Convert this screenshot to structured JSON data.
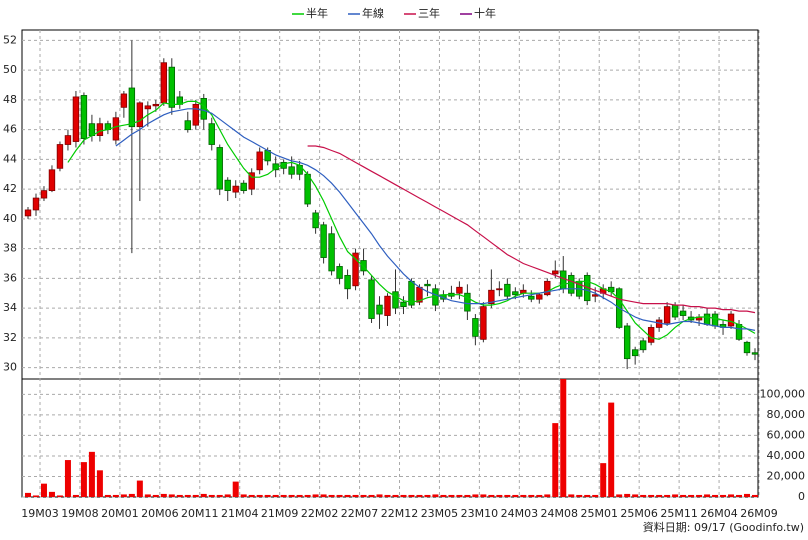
{
  "chart_data": [
    {
      "type": "candlestick",
      "up_color": "#e00000",
      "down_color": "#00c000",
      "ylim": [
        29.3,
        52.7
      ],
      "yticks": [
        30,
        32,
        34,
        36,
        38,
        40,
        42,
        44,
        46,
        48,
        50,
        52
      ],
      "grid": true,
      "open": [
        40.2,
        40.6,
        41.4,
        41.9,
        43.4,
        45.0,
        45.2,
        48.3,
        46.4,
        45.6,
        46.4,
        45.3,
        47.5,
        48.8,
        46.2,
        47.4,
        47.6,
        47.8,
        50.2,
        48.2,
        46.6,
        46.3,
        48.1,
        46.4,
        44.8,
        42.6,
        41.8,
        42.4,
        42.0,
        43.3,
        44.6,
        43.7,
        43.8,
        43.5,
        43.6,
        43.0,
        40.4,
        39.6,
        39.0,
        36.8,
        36.2,
        35.5,
        37.2,
        35.9,
        34.2,
        33.5,
        35.1,
        34.4,
        35.8,
        34.4,
        35.6,
        35.3,
        34.9,
        35.0,
        35.0,
        35.0,
        33.3,
        31.9,
        34.3,
        35.3,
        35.6,
        35.1,
        35.0,
        34.8,
        34.6,
        34.9,
        36.3,
        36.5,
        36.2,
        35.8,
        36.2,
        34.8,
        35.0,
        35.4,
        35.3,
        32.8,
        31.2,
        31.8,
        31.7,
        32.7,
        33.0,
        34.2,
        33.8,
        33.4,
        33.2,
        33.6,
        33.6,
        32.9,
        32.8,
        32.9,
        31.7,
        31.0
      ],
      "high": [
        40.8,
        41.7,
        42.2,
        43.6,
        45.2,
        46.0,
        48.6,
        48.5,
        47.0,
        46.8,
        46.6,
        47.2,
        48.6,
        52.0,
        47.9,
        47.9,
        48.0,
        50.8,
        50.8,
        48.6,
        47.2,
        48.0,
        48.4,
        46.8,
        45.0,
        42.8,
        42.6,
        42.6,
        43.4,
        44.8,
        44.8,
        44.2,
        44.0,
        44.2,
        43.9,
        43.2,
        40.6,
        39.8,
        39.5,
        37.0,
        36.6,
        38.0,
        38.0,
        36.2,
        34.8,
        35.0,
        36.6,
        34.8,
        36.0,
        35.6,
        35.9,
        35.6,
        35.2,
        35.5,
        35.8,
        35.6,
        33.6,
        34.4,
        36.6,
        35.8,
        36.0,
        35.4,
        35.6,
        35.2,
        35.0,
        36.0,
        37.2,
        37.5,
        36.4,
        36.0,
        36.4,
        35.4,
        35.6,
        35.8,
        35.4,
        33.0,
        31.4,
        32.0,
        32.9,
        33.4,
        34.4,
        34.4,
        34.2,
        33.8,
        33.6,
        34.0,
        33.8,
        33.2,
        33.8,
        33.2,
        31.8,
        31.3
      ],
      "low": [
        40.0,
        40.2,
        41.2,
        41.8,
        43.2,
        44.6,
        44.8,
        45.0,
        45.2,
        45.2,
        45.7,
        45.0,
        46.8,
        37.7,
        41.2,
        46.2,
        47.2,
        47.6,
        47.0,
        47.4,
        45.8,
        46.0,
        46.0,
        44.6,
        41.6,
        41.2,
        41.4,
        41.7,
        41.6,
        43.0,
        43.6,
        42.8,
        43.0,
        42.7,
        42.6,
        40.8,
        39.0,
        37.0,
        36.2,
        35.6,
        34.6,
        35.2,
        36.2,
        33.0,
        32.6,
        32.8,
        33.6,
        33.6,
        34.0,
        34.2,
        34.8,
        33.8,
        34.4,
        34.6,
        34.6,
        33.2,
        31.5,
        31.7,
        34.0,
        34.8,
        34.6,
        34.6,
        34.7,
        34.4,
        34.3,
        34.8,
        36.0,
        35.0,
        34.8,
        34.6,
        34.2,
        34.4,
        34.6,
        34.8,
        32.6,
        29.9,
        30.2,
        31.0,
        31.5,
        32.4,
        32.8,
        33.2,
        33.2,
        33.0,
        32.8,
        32.8,
        32.6,
        32.2,
        32.6,
        31.8,
        30.8,
        30.5
      ],
      "close": [
        40.6,
        41.4,
        41.9,
        43.3,
        45.0,
        45.6,
        48.2,
        45.4,
        45.6,
        46.4,
        46.0,
        46.8,
        48.4,
        46.2,
        47.8,
        47.6,
        47.7,
        50.5,
        47.5,
        47.7,
        46.0,
        47.7,
        46.7,
        45.0,
        42.0,
        41.9,
        42.2,
        41.9,
        43.1,
        44.5,
        43.9,
        43.3,
        43.4,
        43.0,
        43.0,
        41.0,
        39.4,
        37.4,
        36.5,
        36.0,
        35.3,
        37.7,
        36.5,
        33.3,
        33.6,
        34.8,
        34.0,
        34.1,
        34.2,
        35.4,
        35.5,
        34.2,
        34.6,
        34.8,
        35.4,
        33.8,
        32.1,
        34.1,
        35.2,
        35.3,
        34.8,
        34.9,
        35.2,
        34.6,
        34.9,
        35.8,
        36.5,
        35.3,
        35.0,
        34.8,
        34.5,
        34.9,
        35.3,
        35.1,
        32.7,
        30.6,
        30.8,
        31.2,
        32.7,
        33.2,
        34.1,
        33.4,
        33.5,
        33.2,
        33.4,
        32.9,
        32.8,
        32.7,
        33.6,
        31.9,
        31.0,
        30.9
      ],
      "series": [
        {
          "name": "半年",
          "color": "#00cc00",
          "values": [
            null,
            null,
            null,
            null,
            null,
            43.8,
            44.6,
            45.3,
            45.6,
            45.9,
            46.0,
            46.2,
            46.3,
            46.4,
            46.6,
            47.0,
            47.3,
            47.8,
            47.7,
            47.7,
            47.9,
            47.9,
            47.6,
            47.0,
            46.0,
            45.0,
            44.2,
            43.4,
            42.8,
            42.8,
            43.0,
            43.4,
            43.7,
            43.8,
            43.6,
            43.0,
            42.2,
            41.2,
            40.0,
            38.8,
            37.8,
            37.3,
            36.8,
            36.2,
            35.6,
            35.1,
            34.8,
            34.5,
            34.4,
            34.5,
            34.7,
            34.8,
            34.9,
            34.9,
            34.9,
            34.7,
            34.4,
            34.2,
            34.2,
            34.3,
            34.5,
            34.8,
            35.0,
            35.0,
            35.0,
            35.1,
            35.4,
            35.6,
            35.7,
            35.8,
            35.8,
            35.6,
            35.3,
            35.1,
            34.6,
            33.8,
            33.0,
            32.5,
            32.0,
            31.9,
            32.2,
            32.7,
            33.1,
            33.3,
            33.4,
            33.4,
            33.3,
            33.2,
            33.1,
            32.9,
            32.6,
            32.3
          ]
        },
        {
          "name": "年線",
          "color": "#2f5fc0",
          "values": [
            null,
            null,
            null,
            null,
            null,
            null,
            null,
            null,
            null,
            null,
            null,
            44.9,
            45.3,
            45.7,
            46.0,
            46.4,
            46.7,
            47.0,
            47.2,
            47.3,
            47.4,
            47.4,
            47.3,
            47.1,
            46.7,
            46.3,
            45.9,
            45.5,
            45.2,
            44.9,
            44.6,
            44.3,
            44.1,
            43.9,
            43.8,
            43.6,
            43.3,
            42.9,
            42.4,
            41.8,
            41.1,
            40.4,
            39.7,
            39.0,
            38.2,
            37.5,
            36.9,
            36.3,
            35.8,
            35.4,
            35.1,
            34.9,
            34.7,
            34.5,
            34.4,
            34.3,
            34.3,
            34.3,
            34.4,
            34.5,
            34.6,
            34.7,
            34.8,
            34.9,
            35.0,
            35.1,
            35.2,
            35.3,
            35.3,
            35.3,
            35.2,
            35.0,
            34.7,
            34.4,
            34.0,
            33.7,
            33.4,
            33.2,
            33.1,
            33.0,
            32.9,
            33.0,
            33.1,
            33.1,
            33.0,
            32.9,
            32.8,
            32.7,
            32.7,
            32.6,
            32.6,
            32.5
          ]
        },
        {
          "name": "三年",
          "color": "#c8104a",
          "values": [
            null,
            null,
            null,
            null,
            null,
            null,
            null,
            null,
            null,
            null,
            null,
            null,
            null,
            null,
            null,
            null,
            null,
            null,
            null,
            null,
            null,
            null,
            null,
            null,
            null,
            null,
            null,
            null,
            null,
            null,
            null,
            null,
            null,
            null,
            null,
            44.9,
            44.9,
            44.8,
            44.6,
            44.4,
            44.1,
            43.8,
            43.5,
            43.2,
            42.9,
            42.6,
            42.3,
            42.0,
            41.7,
            41.4,
            41.1,
            40.8,
            40.5,
            40.2,
            39.9,
            39.6,
            39.2,
            38.8,
            38.4,
            38.0,
            37.6,
            37.3,
            37.0,
            36.8,
            36.6,
            36.4,
            36.2,
            36.0,
            35.8,
            35.6,
            35.4,
            35.2,
            35.0,
            34.8,
            34.6,
            34.5,
            34.4,
            34.3,
            34.3,
            34.3,
            34.3,
            34.2,
            34.2,
            34.1,
            34.1,
            34.0,
            34.0,
            33.9,
            33.9,
            33.8,
            33.8,
            33.7
          ]
        },
        {
          "name": "十年",
          "color": "#800080",
          "values": [
            null,
            null,
            null,
            null,
            null,
            null,
            null,
            null,
            null,
            null,
            null,
            null,
            null,
            null,
            null,
            null,
            null,
            null,
            null,
            null,
            null,
            null,
            null,
            null,
            null,
            null,
            null,
            null,
            null,
            null,
            null,
            null,
            null,
            null,
            null,
            null,
            null,
            null,
            null,
            null,
            null,
            null,
            null,
            null,
            null,
            null,
            null,
            null,
            null,
            null,
            null,
            null,
            null,
            null,
            null,
            null,
            null,
            null,
            null,
            null,
            null,
            null,
            null,
            null,
            null,
            null,
            null,
            null,
            null,
            null,
            null,
            null,
            null,
            null,
            null,
            null,
            null,
            null,
            null,
            null,
            null,
            null,
            null,
            null,
            null,
            null,
            null,
            null,
            null,
            null,
            null,
            null
          ]
        }
      ]
    },
    {
      "type": "bar",
      "color": "#ee0000",
      "categories": [
        "19M03",
        null,
        null,
        null,
        null,
        "19M08",
        null,
        null,
        null,
        null,
        "20M01",
        null,
        null,
        null,
        null,
        "20M06",
        null,
        null,
        null,
        null,
        "20M11",
        null,
        null,
        null,
        null,
        "21M04",
        null,
        null,
        null,
        null,
        "21M09",
        null,
        null,
        null,
        null,
        "22M02",
        null,
        null,
        null,
        null,
        "22M07",
        null,
        null,
        null,
        null,
        "22M12",
        null,
        null,
        null,
        null,
        "23M05",
        null,
        null,
        null,
        null,
        "23M10",
        null,
        null,
        null,
        null,
        "24M03",
        null,
        null,
        null,
        null,
        "24M08",
        null,
        null,
        null,
        null,
        "25M01",
        null,
        null,
        null,
        null,
        "25M06",
        null,
        null,
        null,
        null,
        "25M11",
        null,
        null,
        null,
        null,
        "26M04",
        null,
        null,
        null,
        null,
        "26M09",
        null
      ],
      "values": [
        4000,
        1500,
        13000,
        5000,
        1500,
        36000,
        2000,
        34000,
        44000,
        26000,
        2000,
        2000,
        2500,
        3000,
        16000,
        2500,
        2000,
        3000,
        2500,
        2000,
        2000,
        2000,
        3000,
        2000,
        2000,
        2500,
        15000,
        2500,
        2000,
        2000,
        2000,
        2000,
        2000,
        2000,
        2000,
        2000,
        2500,
        2500,
        2000,
        2000,
        2000,
        2000,
        2000,
        2000,
        2500,
        2000,
        2000,
        2000,
        2000,
        2000,
        2000,
        2500,
        2000,
        2000,
        2000,
        2000,
        2500,
        2500,
        2000,
        2000,
        2000,
        2000,
        2000,
        2000,
        2000,
        2500,
        72000,
        115000,
        2500,
        2000,
        2000,
        2000,
        33000,
        92000,
        2500,
        3000,
        2500,
        2000,
        2000,
        2000,
        2000,
        2500,
        2000,
        2000,
        2000,
        2500,
        2000,
        2000,
        2500,
        2000,
        3000,
        2000
      ],
      "ylim": [
        0,
        115000
      ],
      "yticks": [
        0,
        {
          "value": 20000,
          "label": "20,000"
        },
        {
          "value": 40000,
          "label": "40,000"
        },
        {
          "value": 60000,
          "label": "60,000"
        },
        {
          "value": 80000,
          "label": "80,000"
        },
        {
          "value": 100000,
          "label": "100,000"
        }
      ],
      "grid": true
    }
  ],
  "footer": "資料日期: 09/17 (Goodinfo.tw)"
}
